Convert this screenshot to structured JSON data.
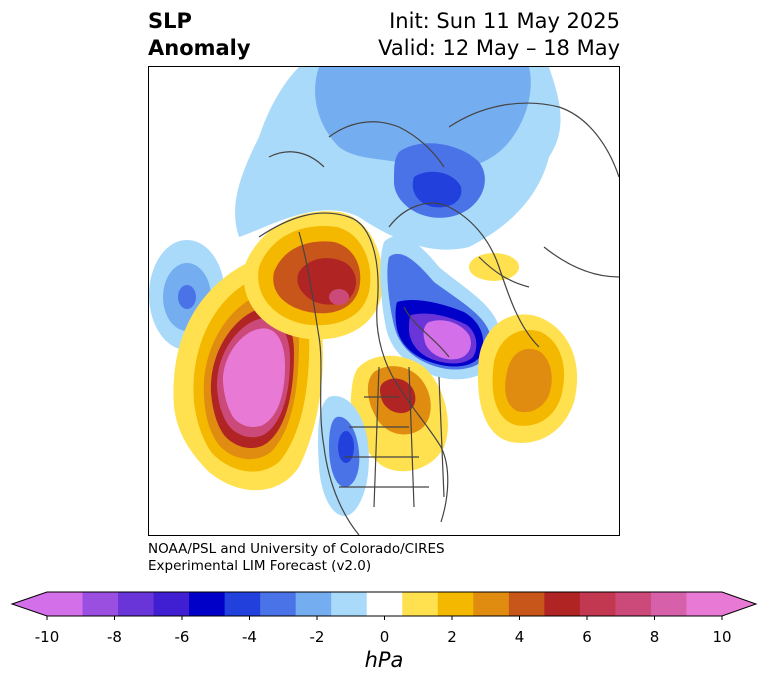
{
  "title": {
    "left_line1": "SLP",
    "left_line2": "Anomaly",
    "right_line1": "Init: Sun 11 May 2025",
    "right_line2": "Valid: 12 May – 18 May"
  },
  "credit": {
    "line1": "NOAA/PSL and University of Colorado/CIRES",
    "line2": "Experimental LIM Forecast (v2.0)"
  },
  "colorbar": {
    "unit": "hPa",
    "extend": "both",
    "boundaries": [
      -10,
      -9,
      -8,
      -7,
      -6,
      -5,
      -4,
      -3,
      -2,
      -1,
      1,
      2,
      3,
      4,
      5,
      6,
      7,
      8,
      9,
      10
    ],
    "colors": [
      "#d36fe9",
      "#9b4fe0",
      "#6a35d8",
      "#3f1fd1",
      "#0000c8",
      "#2240dc",
      "#4a73e8",
      "#75aef0",
      "#a9dafa",
      "#ffffff",
      "#ffe150",
      "#f5b800",
      "#e08c10",
      "#c8561a",
      "#b02424",
      "#c23850",
      "#cc4a7a",
      "#d660aa",
      "#e87ad6"
    ],
    "under_color": "#d36fe9",
    "over_color": "#e87ad6",
    "ticks": [
      "-10",
      "-8",
      "-6",
      "-4",
      "-2",
      "0",
      "2",
      "4",
      "6",
      "8",
      "10"
    ]
  },
  "map": {
    "projection": "north-polar-stereographic",
    "field": "sea-level-pressure-anomaly",
    "coastline_color": "#444444",
    "anomaly_centers": [
      {
        "region": "north-pacific",
        "value": 10
      },
      {
        "region": "canada-hudson-bay",
        "value": 8
      },
      {
        "region": "north-atlantic-labrador",
        "value": -10
      },
      {
        "region": "siberia-arctic",
        "value": -5
      },
      {
        "region": "great-lakes",
        "value": 6
      },
      {
        "region": "north-atlantic-east",
        "value": 4
      },
      {
        "region": "central-us",
        "value": -5
      },
      {
        "region": "bering-pacific-west",
        "value": -4
      }
    ]
  }
}
